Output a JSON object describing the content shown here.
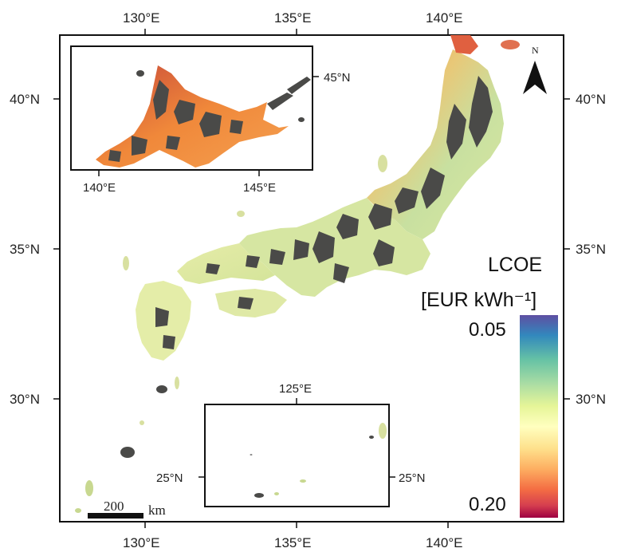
{
  "main_map": {
    "lon_ticks": [
      "130°E",
      "135°E",
      "140°E"
    ],
    "lat_ticks": [
      "40°N",
      "35°N",
      "30°N"
    ]
  },
  "inset_hokkaido": {
    "lon_ticks": [
      "140°E",
      "145°E"
    ],
    "lat_ticks": [
      "45°N"
    ]
  },
  "inset_ryukyu": {
    "lon_ticks": [
      "125°E"
    ],
    "lat_ticks": [
      "25°N",
      "25°N"
    ]
  },
  "legend": {
    "title_line1": "LCOE",
    "title_line2": "[EUR kWh⁻¹]",
    "min_label": "0.05",
    "max_label": "0.20",
    "colors": [
      "#5e4fa2",
      "#3288bd",
      "#66c2a5",
      "#abdda4",
      "#e6f598",
      "#ffffbf",
      "#fee08b",
      "#fdae61",
      "#f46d43",
      "#d53e4f",
      "#9e0142"
    ]
  },
  "scale_bar": {
    "value": "200",
    "unit": "km"
  },
  "north_arrow": {
    "label": "N"
  },
  "colors": {
    "excluded_area": "#4a4a48",
    "low_lcoe_land": "#d8e8a0",
    "high_lcoe_land": "#f29a4a"
  }
}
